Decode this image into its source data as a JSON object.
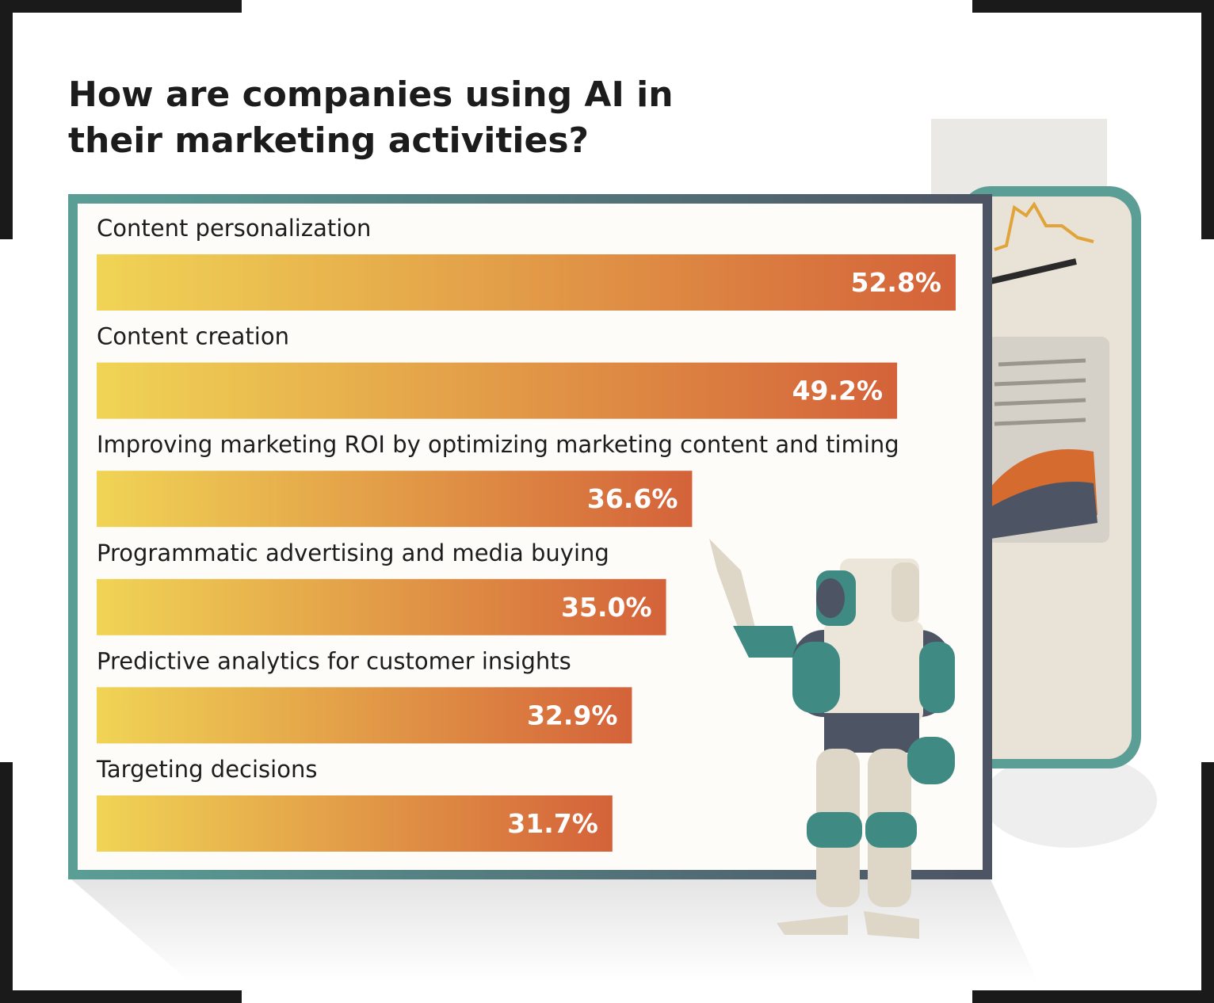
{
  "chart_data": {
    "type": "bar",
    "orientation": "horizontal",
    "title": "How are companies using AI in their marketing activities?",
    "categories": [
      "Content personalization",
      "Content creation",
      "Improving marketing ROI by optimizing marketing content and timing",
      "Programmatic advertising and media buying",
      "Predictive analytics for customer insights",
      "Targeting decisions"
    ],
    "values": [
      52.8,
      49.2,
      36.6,
      35.0,
      32.9,
      31.7
    ],
    "value_labels": [
      "52.8%",
      "49.2%",
      "36.6%",
      "35.0%",
      "32.9%",
      "31.7%"
    ],
    "color_start": "#f0d455",
    "color_end": "#d4623a"
  }
}
